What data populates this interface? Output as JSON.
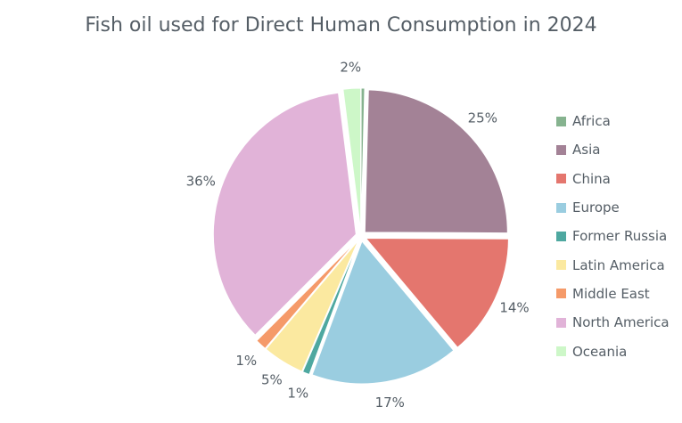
{
  "chart_data": {
    "type": "pie",
    "title": "Fish oil used for Direct Human Consumption in 2024",
    "legend_position": "right",
    "slices": [
      {
        "name": "Africa",
        "value": 0.4,
        "label": "",
        "color": "#86b38f"
      },
      {
        "name": "Asia",
        "value": 25,
        "label": "25%",
        "color": "#a38296"
      },
      {
        "name": "China",
        "value": 14,
        "label": "14%",
        "color": "#e4766e"
      },
      {
        "name": "Europe",
        "value": 17,
        "label": "17%",
        "color": "#9acde0"
      },
      {
        "name": "Former Russia",
        "value": 0.8,
        "label": "1%",
        "color": "#4ea8a0"
      },
      {
        "name": "Latin America",
        "value": 4.8,
        "label": "5%",
        "color": "#fbe9a0"
      },
      {
        "name": "Middle East",
        "value": 1.3,
        "label": "1%",
        "color": "#f59a69"
      },
      {
        "name": "North America",
        "value": 36,
        "label": "36%",
        "color": "#e1b3d8"
      },
      {
        "name": "Oceania",
        "value": 2,
        "label": "2%",
        "color": "#cdf7c8"
      }
    ]
  }
}
